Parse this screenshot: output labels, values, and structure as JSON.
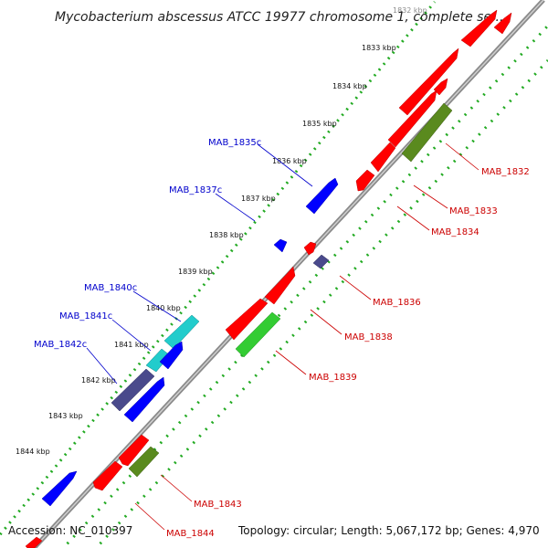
{
  "title": "Mycobacterium abscessus ATCC 19977 chromosome 1, complete se...",
  "accession": "Accession: NC_010397",
  "summary": "Topology: circular; Length: 5,067,172 bp; Genes: 4,970",
  "kbp_ticks": [
    "1832 kbp",
    "1833 kbp",
    "1834 kbp",
    "1835 kbp",
    "1836 kbp",
    "1837 kbp",
    "1838 kbp",
    "1839 kbp",
    "1840 kbp",
    "1841 kbp",
    "1842 kbp",
    "1843 kbp",
    "1844 kbp"
  ],
  "left_labels": [
    "MAB_1835c",
    "MAB_1837c",
    "MAB_1840c",
    "MAB_1841c",
    "MAB_1842c"
  ],
  "right_labels": [
    "MAB_1832",
    "MAB_1833",
    "MAB_1834",
    "MAB_1836",
    "MAB_1838",
    "MAB_1839",
    "MAB_1843",
    "MAB_1844"
  ],
  "colors": {
    "cds_forward": "#ff0000",
    "cds_reverse": "#0000ff",
    "cog_reverse_dark": "#4a4a8c",
    "cog_reverse_cyan": "#22cccc",
    "cog_forward_olive": "#5a8a1e",
    "cog_forward_green": "#33cc33",
    "left_label": "#0000cc",
    "right_label": "#cc0000",
    "backbone": "#888888",
    "tick_dots": "#22aa22"
  }
}
